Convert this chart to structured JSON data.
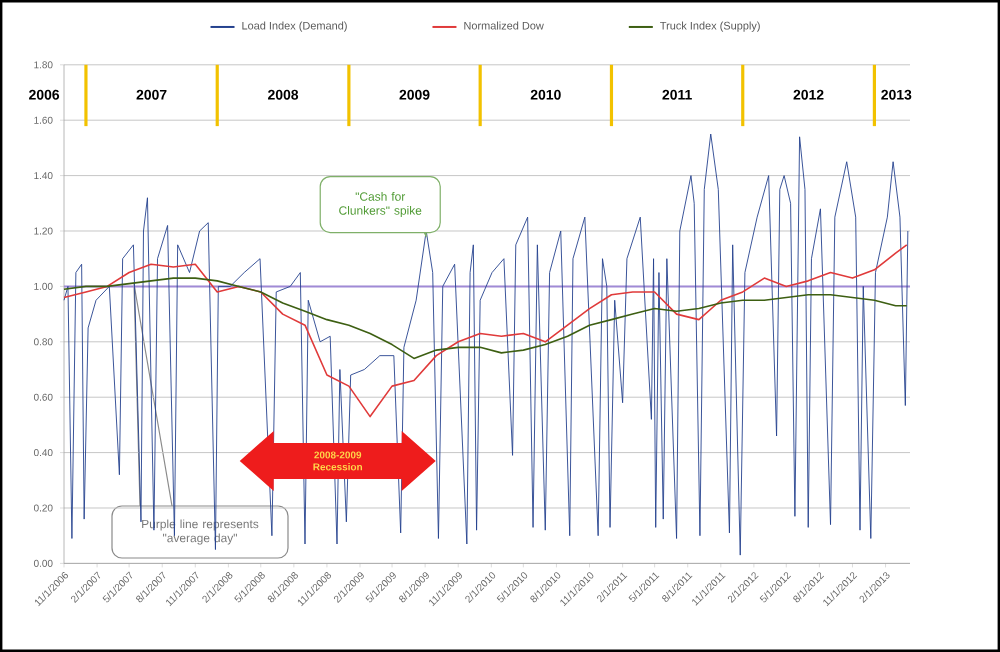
{
  "chart_data": {
    "type": "line",
    "xlim": [
      "2006-11-01",
      "2013-04-10"
    ],
    "ylim": [
      0,
      1.8
    ],
    "xticks": [
      {
        "value": "2006-11-01",
        "label": "11/1/2006"
      },
      {
        "value": "2007-02-01",
        "label": "2/1/2007"
      },
      {
        "value": "2007-05-01",
        "label": "5/1/2007"
      },
      {
        "value": "2007-08-01",
        "label": "8/1/2007"
      },
      {
        "value": "2007-11-01",
        "label": "11/1/2007"
      },
      {
        "value": "2008-02-01",
        "label": "2/1/2008"
      },
      {
        "value": "2008-05-01",
        "label": "5/1/2008"
      },
      {
        "value": "2008-08-01",
        "label": "8/1/2008"
      },
      {
        "value": "2008-11-01",
        "label": "11/1/2008"
      },
      {
        "value": "2009-02-01",
        "label": "2/1/2009"
      },
      {
        "value": "2009-05-01",
        "label": "5/1/2009"
      },
      {
        "value": "2009-08-01",
        "label": "8/1/2009"
      },
      {
        "value": "2009-11-01",
        "label": "11/1/2009"
      },
      {
        "value": "2010-02-01",
        "label": "2/1/2010"
      },
      {
        "value": "2010-05-01",
        "label": "5/1/2010"
      },
      {
        "value": "2010-08-01",
        "label": "8/1/2010"
      },
      {
        "value": "2010-11-01",
        "label": "11/1/2010"
      },
      {
        "value": "2011-02-01",
        "label": "2/1/2011"
      },
      {
        "value": "2011-05-01",
        "label": "5/1/2011"
      },
      {
        "value": "2011-08-01",
        "label": "8/1/2011"
      },
      {
        "value": "2011-11-01",
        "label": "11/1/2011"
      },
      {
        "value": "2012-02-01",
        "label": "2/1/2012"
      },
      {
        "value": "2012-05-01",
        "label": "5/1/2012"
      },
      {
        "value": "2012-08-01",
        "label": "8/1/2012"
      },
      {
        "value": "2012-11-01",
        "label": "11/1/2012"
      },
      {
        "value": "2013-02-01",
        "label": "2/1/2013"
      }
    ],
    "yticks": [
      {
        "value": 0,
        "label": "0.00"
      },
      {
        "value": 0.2,
        "label": "0.20"
      },
      {
        "value": 0.4,
        "label": "0.40"
      },
      {
        "value": 0.6,
        "label": "0.60"
      },
      {
        "value": 0.8,
        "label": "0.80"
      },
      {
        "value": 1.0,
        "label": "1.00"
      },
      {
        "value": 1.2,
        "label": "1.20"
      },
      {
        "value": 1.4,
        "label": "1.40"
      },
      {
        "value": 1.6,
        "label": "1.60"
      },
      {
        "value": 1.8,
        "label": "1.80"
      }
    ],
    "grid": "y",
    "legend": "top",
    "series": [
      {
        "name": "Load Index (Demand)",
        "color": "#24418e",
        "x": [
          "2006-11-01",
          "2006-11-12",
          "2006-11-23",
          "2006-12-04",
          "2006-12-20",
          "2006-12-27",
          "2007-01-07",
          "2007-01-29",
          "2007-03-07",
          "2007-04-04",
          "2007-04-13",
          "2007-05-13",
          "2007-06-03",
          "2007-06-10",
          "2007-06-21",
          "2007-07-09",
          "2007-07-19",
          "2007-08-16",
          "2007-09-04",
          "2007-09-13",
          "2007-10-16",
          "2007-11-13",
          "2007-12-07",
          "2007-12-27",
          "2008-01-04",
          "2008-02-06",
          "2008-03-16",
          "2008-04-29",
          "2008-06-01",
          "2008-06-13",
          "2008-07-22",
          "2008-08-19",
          "2008-09-01",
          "2008-09-10",
          "2008-10-13",
          "2008-11-10",
          "2008-11-29",
          "2008-12-07",
          "2008-12-25",
          "2009-01-06",
          "2009-02-13",
          "2009-03-28",
          "2009-05-06",
          "2009-05-25",
          "2009-06-03",
          "2009-07-07",
          "2009-08-04",
          "2009-08-22",
          "2009-09-07",
          "2009-09-19",
          "2009-10-22",
          "2009-11-25",
          "2009-12-04",
          "2009-12-13",
          "2009-12-22",
          "2010-01-01",
          "2010-02-03",
          "2010-03-08",
          "2010-04-01",
          "2010-04-10",
          "2010-05-13",
          "2010-05-28",
          "2010-06-09",
          "2010-07-01",
          "2010-07-13",
          "2010-08-13",
          "2010-09-07",
          "2010-09-16",
          "2010-10-19",
          "2010-11-25",
          "2010-12-07",
          "2010-12-19",
          "2010-12-28",
          "2011-01-10",
          "2011-02-01",
          "2011-02-13",
          "2011-03-22",
          "2011-04-22",
          "2011-04-28",
          "2011-05-04",
          "2011-05-13",
          "2011-05-25",
          "2011-06-04",
          "2011-07-01",
          "2011-07-10",
          "2011-08-10",
          "2011-08-19",
          "2011-09-04",
          "2011-09-16",
          "2011-10-04",
          "2011-10-25",
          "2011-11-25",
          "2011-12-04",
          "2011-12-25",
          "2012-01-07",
          "2012-02-10",
          "2012-03-13",
          "2012-04-04",
          "2012-04-13",
          "2012-04-25",
          "2012-05-13",
          "2012-05-25",
          "2012-06-07",
          "2012-06-22",
          "2012-07-01",
          "2012-07-10",
          "2012-08-04",
          "2012-09-01",
          "2012-09-13",
          "2012-10-16",
          "2012-11-10",
          "2012-11-22",
          "2012-12-01",
          "2012-12-22",
          "2013-01-04",
          "2013-02-06",
          "2013-02-22",
          "2013-03-13",
          "2013-03-28",
          "2013-04-04"
        ],
        "values": [
          0.95,
          1.0,
          0.09,
          1.05,
          1.08,
          0.16,
          0.85,
          0.95,
          1.0,
          0.32,
          1.1,
          1.15,
          0.15,
          1.2,
          1.32,
          0.12,
          1.1,
          1.22,
          0.1,
          1.15,
          1.05,
          1.2,
          1.23,
          0.05,
          1.0,
          1.0,
          1.05,
          1.1,
          0.1,
          0.98,
          1.0,
          1.05,
          0.07,
          0.95,
          0.8,
          0.82,
          0.07,
          0.7,
          0.15,
          0.68,
          0.7,
          0.75,
          0.75,
          0.11,
          0.78,
          0.95,
          1.2,
          1.05,
          0.09,
          1.0,
          1.08,
          0.07,
          1.05,
          1.15,
          0.12,
          0.95,
          1.05,
          1.1,
          0.39,
          1.15,
          1.25,
          0.13,
          1.15,
          0.12,
          1.05,
          1.2,
          0.1,
          1.1,
          1.25,
          0.1,
          1.1,
          1.0,
          0.13,
          0.95,
          0.58,
          1.1,
          1.25,
          0.52,
          1.1,
          0.13,
          1.05,
          0.16,
          1.1,
          0.09,
          1.2,
          1.4,
          1.3,
          0.1,
          1.35,
          1.55,
          1.35,
          0.11,
          1.15,
          0.03,
          1.05,
          1.25,
          1.4,
          0.46,
          1.35,
          1.4,
          1.3,
          0.17,
          1.54,
          1.35,
          0.13,
          1.1,
          1.28,
          0.14,
          1.25,
          1.45,
          1.25,
          0.12,
          1.0,
          0.09,
          1.05,
          1.25,
          1.45,
          1.25,
          0.57,
          1.2
        ]
      },
      {
        "name": "Normalized Dow",
        "color": "#e03a3a",
        "x": [
          "2006-11-01",
          "2007-01-01",
          "2007-03-01",
          "2007-05-01",
          "2007-07-01",
          "2007-09-01",
          "2007-11-01",
          "2008-01-01",
          "2008-03-01",
          "2008-05-01",
          "2008-07-01",
          "2008-09-01",
          "2008-11-01",
          "2009-01-01",
          "2009-03-01",
          "2009-05-01",
          "2009-07-01",
          "2009-09-01",
          "2009-11-01",
          "2010-01-01",
          "2010-03-01",
          "2010-05-01",
          "2010-07-01",
          "2010-09-01",
          "2010-11-01",
          "2011-01-01",
          "2011-03-01",
          "2011-05-01",
          "2011-07-01",
          "2011-09-01",
          "2011-11-01",
          "2012-01-01",
          "2012-03-01",
          "2012-05-01",
          "2012-07-01",
          "2012-09-01",
          "2012-11-01",
          "2013-01-01",
          "2013-03-01",
          "2013-04-01"
        ],
        "values": [
          0.96,
          0.98,
          1.0,
          1.05,
          1.08,
          1.07,
          1.08,
          0.98,
          1.0,
          0.98,
          0.9,
          0.86,
          0.68,
          0.64,
          0.53,
          0.64,
          0.66,
          0.75,
          0.8,
          0.83,
          0.82,
          0.83,
          0.8,
          0.86,
          0.92,
          0.97,
          0.98,
          0.98,
          0.9,
          0.88,
          0.95,
          0.98,
          1.03,
          1.0,
          1.02,
          1.05,
          1.03,
          1.06,
          1.12,
          1.15
        ]
      },
      {
        "name": "Truck Index (Supply)",
        "color": "#3d5f12",
        "x": [
          "2006-11-01",
          "2007-01-01",
          "2007-03-01",
          "2007-05-01",
          "2007-07-01",
          "2007-09-01",
          "2007-11-01",
          "2008-01-01",
          "2008-03-01",
          "2008-05-01",
          "2008-07-01",
          "2008-09-01",
          "2008-11-01",
          "2009-01-01",
          "2009-03-01",
          "2009-05-01",
          "2009-07-01",
          "2009-09-01",
          "2009-11-01",
          "2010-01-01",
          "2010-03-01",
          "2010-05-01",
          "2010-07-01",
          "2010-09-01",
          "2010-11-01",
          "2011-01-01",
          "2011-03-01",
          "2011-05-01",
          "2011-07-01",
          "2011-09-01",
          "2011-11-01",
          "2012-01-01",
          "2012-03-01",
          "2012-05-01",
          "2012-07-01",
          "2012-09-01",
          "2012-11-01",
          "2013-01-01",
          "2013-03-01",
          "2013-04-01"
        ],
        "values": [
          0.99,
          1.0,
          1.0,
          1.01,
          1.02,
          1.03,
          1.03,
          1.02,
          1.0,
          0.98,
          0.94,
          0.91,
          0.88,
          0.86,
          0.83,
          0.79,
          0.74,
          0.77,
          0.78,
          0.78,
          0.76,
          0.77,
          0.79,
          0.82,
          0.86,
          0.88,
          0.9,
          0.92,
          0.91,
          0.92,
          0.94,
          0.95,
          0.95,
          0.96,
          0.97,
          0.97,
          0.96,
          0.95,
          0.93,
          0.93
        ]
      }
    ],
    "ref_lines": [
      {
        "axis": "y",
        "value": 1.0,
        "color": "#a08ad6"
      },
      {
        "axis": "x",
        "value": "2007-01-01",
        "color": "#f2c200"
      },
      {
        "axis": "x",
        "value": "2008-01-01",
        "color": "#f2c200"
      },
      {
        "axis": "x",
        "value": "2009-01-01",
        "color": "#f2c200"
      },
      {
        "axis": "x",
        "value": "2010-01-01",
        "color": "#f2c200"
      },
      {
        "axis": "x",
        "value": "2011-01-01",
        "color": "#f2c200"
      },
      {
        "axis": "x",
        "value": "2012-01-01",
        "color": "#f2c200"
      },
      {
        "axis": "x",
        "value": "2013-01-01",
        "color": "#f2c200"
      }
    ],
    "annotations": [
      {
        "text": "\"Cash for Clunkers\" spike",
        "x": "2009-08-04",
        "y": 1.18
      },
      {
        "text": "2008-2009 Recession",
        "x": "2008-12-01",
        "y": 0.37
      },
      "Purple line represents \"average day\"",
      "2006",
      "2007",
      "2008",
      "2009",
      "2010",
      "2011",
      "2012",
      "2013"
    ]
  }
}
